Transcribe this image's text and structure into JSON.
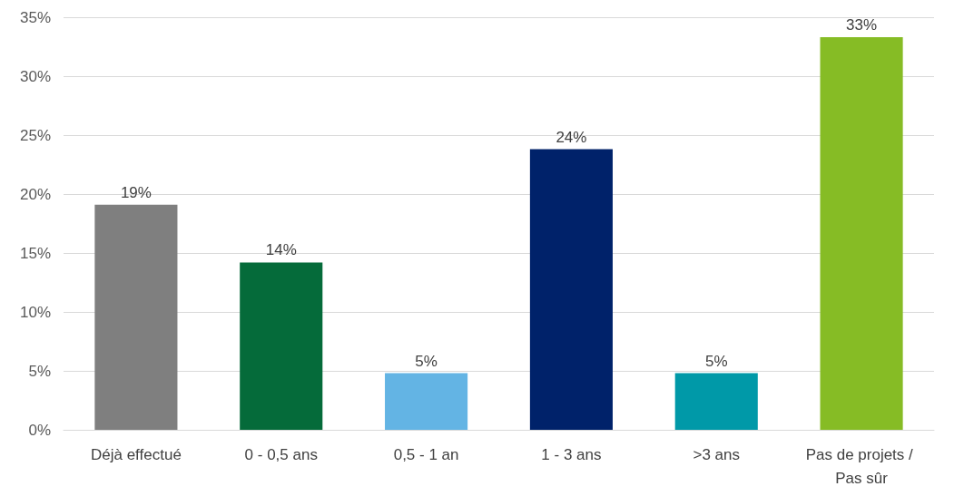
{
  "chart_data": {
    "type": "bar",
    "categories": [
      "Déjà effectué",
      "0 - 0,5 ans",
      "0,5 - 1 an",
      "1 - 3 ans",
      ">3 ans",
      "Pas de projets / Pas sûr"
    ],
    "values": [
      19.1,
      14.2,
      4.8,
      23.8,
      4.8,
      33.3
    ],
    "colors": [
      "#7f7f7f",
      "#056b3a",
      "#63b4e4",
      "#00226a",
      "#0099a8",
      "#86bc25"
    ],
    "value_labels": [
      "19%",
      "14%",
      "5%",
      "24%",
      "5%",
      "33%"
    ],
    "ylim": [
      0,
      35
    ],
    "yticks": [
      {
        "value": 0,
        "label": "0%"
      },
      {
        "value": 5,
        "label": "5%"
      },
      {
        "value": 10,
        "label": "10%"
      },
      {
        "value": 15,
        "label": "15%"
      },
      {
        "value": 20,
        "label": "20%"
      },
      {
        "value": 25,
        "label": "25%"
      },
      {
        "value": 30,
        "label": "30%"
      },
      {
        "value": 35,
        "label": "35%"
      }
    ],
    "grid": "y"
  }
}
